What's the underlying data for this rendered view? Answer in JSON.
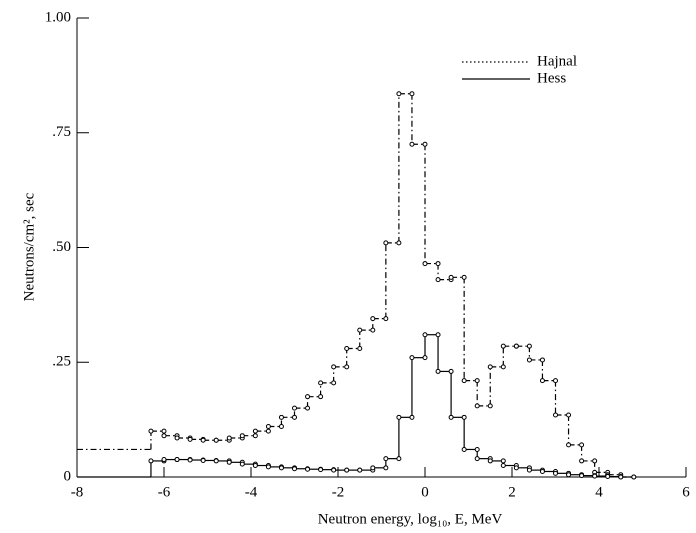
{
  "chart_data": {
    "type": "histogram",
    "xlabel": "Neutron energy, log₁₀, E, MeV",
    "ylabel": "Neutrons/cm², sec",
    "bins": [
      -8,
      -6.3,
      -6.0,
      -5.7,
      -5.4,
      -5.1,
      -4.8,
      -4.5,
      -4.2,
      -3.9,
      -3.6,
      -3.3,
      -3.0,
      -2.7,
      -2.4,
      -2.1,
      -1.8,
      -1.5,
      -1.2,
      -0.9,
      -0.6,
      -0.3,
      0,
      0.3,
      0.6,
      0.9,
      1.2,
      1.5,
      1.8,
      2.1,
      2.4,
      2.7,
      3.0,
      3.3,
      3.6,
      3.9,
      4.2,
      4.5,
      4.8
    ],
    "series": [
      {
        "name": "Hajnal",
        "color": "#000000",
        "line_style": "dashdot",
        "values": [
          0.06,
          0.1,
          0.09,
          0.085,
          0.082,
          0.08,
          0.08,
          0.085,
          0.09,
          0.1,
          0.11,
          0.13,
          0.15,
          0.175,
          0.205,
          0.24,
          0.28,
          0.32,
          0.345,
          0.51,
          0.835,
          0.725,
          0.465,
          0.43,
          0.435,
          0.21,
          0.155,
          0.24,
          0.285,
          0.285,
          0.255,
          0.21,
          0.135,
          0.07,
          0.035,
          0.01,
          0.005,
          0
        ]
      },
      {
        "name": "Hess",
        "color": "#000000",
        "line_style": "solid",
        "values": [
          0,
          0.035,
          0.038,
          0.038,
          0.037,
          0.036,
          0.035,
          0.032,
          0.028,
          0.025,
          0.022,
          0.02,
          0.018,
          0.017,
          0.016,
          0.015,
          0.015,
          0.015,
          0.02,
          0.04,
          0.13,
          0.26,
          0.31,
          0.23,
          0.13,
          0.06,
          0.04,
          0.035,
          0.025,
          0.02,
          0.015,
          0.012,
          0.008,
          0.005,
          0.003,
          0.002,
          0.001,
          0
        ]
      }
    ],
    "xlim": [
      -8,
      6
    ],
    "xticks": [
      -8,
      -6,
      -4,
      -2,
      0,
      2,
      4,
      6
    ],
    "ylim": [
      0,
      1
    ],
    "yticks": [
      0,
      {
        "value": 0.25,
        "label": ".25"
      },
      {
        "value": 0.5,
        "label": ".50"
      },
      {
        "value": 0.75,
        "label": ".75"
      },
      {
        "value": 1,
        "label": "1.00"
      }
    ],
    "grid": false,
    "legend": "upper right"
  }
}
